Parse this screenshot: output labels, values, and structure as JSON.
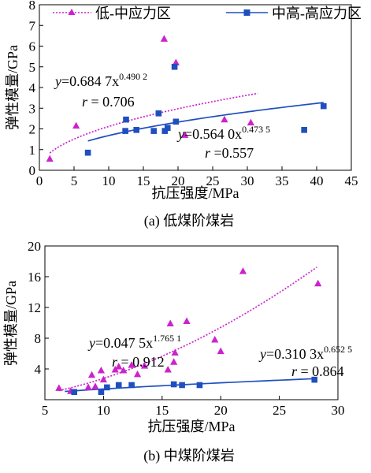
{
  "chart_data": [
    {
      "type": "scatter",
      "caption": "(a)  低煤阶煤岩",
      "xlabel": "抗压强度/MPa",
      "ylabel": "弹性模量/GPa",
      "xlim": [
        0,
        45
      ],
      "ylim": [
        0,
        8
      ],
      "xticks": [
        "0",
        "5",
        "10",
        "15",
        "20",
        "25",
        "30",
        "35",
        "40",
        "45"
      ],
      "yticks": [
        "0",
        "1",
        "2",
        "3",
        "4",
        "5",
        "6",
        "7",
        "8"
      ],
      "legend_position": "top",
      "series": [
        {
          "name": "低-中应力区",
          "marker": "triangle",
          "color": "#cc22cc",
          "points": [
            [
              1.5,
              0.55
            ],
            [
              5.3,
              2.15
            ],
            [
              18,
              6.35
            ],
            [
              19.7,
              5.2
            ],
            [
              21,
              1.7
            ],
            [
              26.7,
              2.45
            ],
            [
              30.5,
              2.3
            ]
          ],
          "fit": {
            "a": 0.6847,
            "b": 0.4902,
            "x_range": [
              1.5,
              31.5
            ],
            "style": "dotted",
            "eq_prefix": "y=0.684 7x",
            "eq_exp": "0.490 2",
            "r_text": "r = 0.706"
          }
        },
        {
          "name": "中高-高应力区",
          "marker": "square",
          "color": "#1f4fbf",
          "points": [
            [
              7,
              0.85
            ],
            [
              12.4,
              1.9
            ],
            [
              12.5,
              2.45
            ],
            [
              14,
              1.95
            ],
            [
              16.5,
              1.9
            ],
            [
              17.2,
              2.75
            ],
            [
              18.1,
              1.9
            ],
            [
              18.5,
              2.05
            ],
            [
              19.5,
              5.0
            ],
            [
              19.7,
              2.35
            ],
            [
              38.2,
              1.95
            ],
            [
              41,
              3.1
            ]
          ],
          "fit": {
            "a": 0.564,
            "b": 0.4735,
            "x_range": [
              7,
              41
            ],
            "style": "solid",
            "eq_prefix": "y=0.564 0x",
            "eq_exp": "0.473 5",
            "r_text": "r =0.557"
          }
        }
      ]
    },
    {
      "type": "scatter",
      "caption": "(b)  中煤阶煤岩",
      "xlabel": "抗压强度/MPa",
      "ylabel": "弹性模量/GPa",
      "xlim": [
        5,
        30
      ],
      "ylim": [
        0,
        20
      ],
      "xticks": [
        "5",
        "10",
        "15",
        "20",
        "25",
        "30"
      ],
      "yticks": [
        "4",
        "8",
        "12",
        "16",
        "20"
      ],
      "series": [
        {
          "name": "低-中应力区",
          "marker": "triangle",
          "color": "#cc22cc",
          "points": [
            [
              6.2,
              1.5
            ],
            [
              7.2,
              1.1
            ],
            [
              8.7,
              1.6
            ],
            [
              9,
              3.2
            ],
            [
              9.3,
              1.7
            ],
            [
              9.8,
              3.8
            ],
            [
              10,
              2.6
            ],
            [
              11,
              3.9
            ],
            [
              11.3,
              4.3
            ],
            [
              11.7,
              3.8
            ],
            [
              12.4,
              4.5
            ],
            [
              12.9,
              3.3
            ],
            [
              13.5,
              4.4
            ],
            [
              15.5,
              3.9
            ],
            [
              15.7,
              9.9
            ],
            [
              16,
              4.9
            ],
            [
              16.1,
              6.1
            ],
            [
              17.1,
              10.2
            ],
            [
              19.5,
              7.8
            ],
            [
              20,
              6.3
            ],
            [
              21.9,
              16.7
            ],
            [
              28.3,
              15.1
            ]
          ],
          "fit": {
            "a": 0.0475,
            "b": 1.7651,
            "x_range": [
              6.2,
              28.2
            ],
            "style": "dotted",
            "eq_prefix": "y=0.047 5x",
            "eq_exp": "1.765 1",
            "r_text": "r = 0.912"
          }
        },
        {
          "name": "中高-高应力区",
          "marker": "square",
          "color": "#1f4fbf",
          "points": [
            [
              7.5,
              1.0
            ],
            [
              9.8,
              1.0
            ],
            [
              10.3,
              1.6
            ],
            [
              11.3,
              1.9
            ],
            [
              12.4,
              1.9
            ],
            [
              16,
              2.0
            ],
            [
              16.7,
              1.9
            ],
            [
              18.2,
              1.9
            ],
            [
              28,
              2.6
            ]
          ],
          "fit": {
            "a": 0.3103,
            "b": 0.6525,
            "x_range": [
              6.7,
              28.2
            ],
            "style": "solid",
            "eq_prefix": "y=0.310 3x",
            "eq_exp": "0.652 5",
            "r_text": "r = 0.864"
          }
        }
      ]
    }
  ]
}
